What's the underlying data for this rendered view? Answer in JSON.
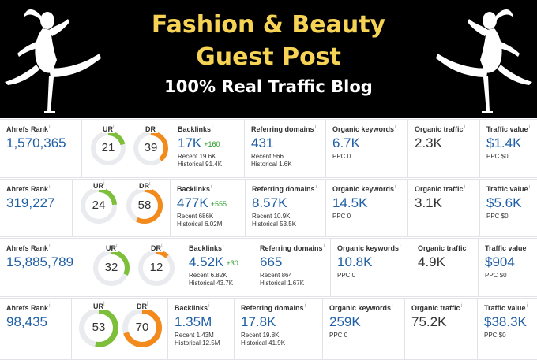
{
  "banner": {
    "title_line1": "Fashion & Beauty",
    "title_line2": "Guest Post",
    "tagline": "100% Real Traffic Blog",
    "colors": {
      "background": "#000000",
      "title": "#f6d354",
      "tagline": "#ffffff"
    }
  },
  "labels": {
    "ahrefs_rank": "Ahrefs Rank",
    "ur": "UR",
    "dr": "DR",
    "backlinks": "Backlinks",
    "referring_domains": "Referring domains",
    "organic_keywords": "Organic keywords",
    "organic_traffic": "Organic traffic",
    "traffic_value": "Traffic value",
    "info": "i"
  },
  "colors": {
    "ur_arc": "#7dbf3a",
    "dr_arc": "#f28a1c",
    "track": "#e9ebef",
    "value_blue": "#1f5fa6",
    "delta_green": "#2c9a2c"
  },
  "rows": [
    {
      "ahrefs_rank": "1,570,365",
      "ur": "21",
      "dr": "39",
      "backlinks": "17K",
      "backlinks_delta": "+160",
      "backlinks_recent": "Recent 19.6K",
      "backlinks_historical": "Historical 91.4K",
      "referring_domains": "431",
      "rd_recent": "Recent 566",
      "rd_historical": "Historical 1.6K",
      "organic_keywords": "6.7K",
      "ppc": "PPC 0",
      "organic_traffic": "2.3K",
      "traffic_value": "$1.4K",
      "traffic_ppc": "PPC $0"
    },
    {
      "ahrefs_rank": "319,227",
      "ur": "24",
      "dr": "58",
      "backlinks": "477K",
      "backlinks_delta": "+555",
      "backlinks_recent": "Recent 686K",
      "backlinks_historical": "Historical 6.02M",
      "referring_domains": "8.57K",
      "rd_recent": "Recent 10.9K",
      "rd_historical": "Historical 53.5K",
      "organic_keywords": "14.5K",
      "ppc": "PPC 0",
      "organic_traffic": "3.1K",
      "traffic_value": "$5.6K",
      "traffic_ppc": "PPC $0"
    },
    {
      "ahrefs_rank": "15,885,789",
      "ur": "32",
      "dr": "12",
      "backlinks": "4.52K",
      "backlinks_delta": "+30",
      "backlinks_recent": "Recent 6.82K",
      "backlinks_historical": "Historical 43.7K",
      "referring_domains": "665",
      "rd_recent": "Recent 864",
      "rd_historical": "Historical 1.67K",
      "organic_keywords": "10.8K",
      "ppc": "PPC 0",
      "organic_traffic": "4.9K",
      "traffic_value": "$904",
      "traffic_ppc": "PPC $0"
    },
    {
      "ahrefs_rank": "98,435",
      "ur": "53",
      "dr": "70",
      "backlinks": "1.35M",
      "backlinks_delta": "",
      "backlinks_recent": "Recent 1.43M",
      "backlinks_historical": "Historical 12.5M",
      "referring_domains": "17.8K",
      "rd_recent": "Recent 19.8K",
      "rd_historical": "Historical 41.9K",
      "organic_keywords": "259K",
      "ppc": "PPC 0",
      "organic_traffic": "75.2K",
      "traffic_value": "$38.3K",
      "traffic_ppc": "PPC $0"
    }
  ]
}
